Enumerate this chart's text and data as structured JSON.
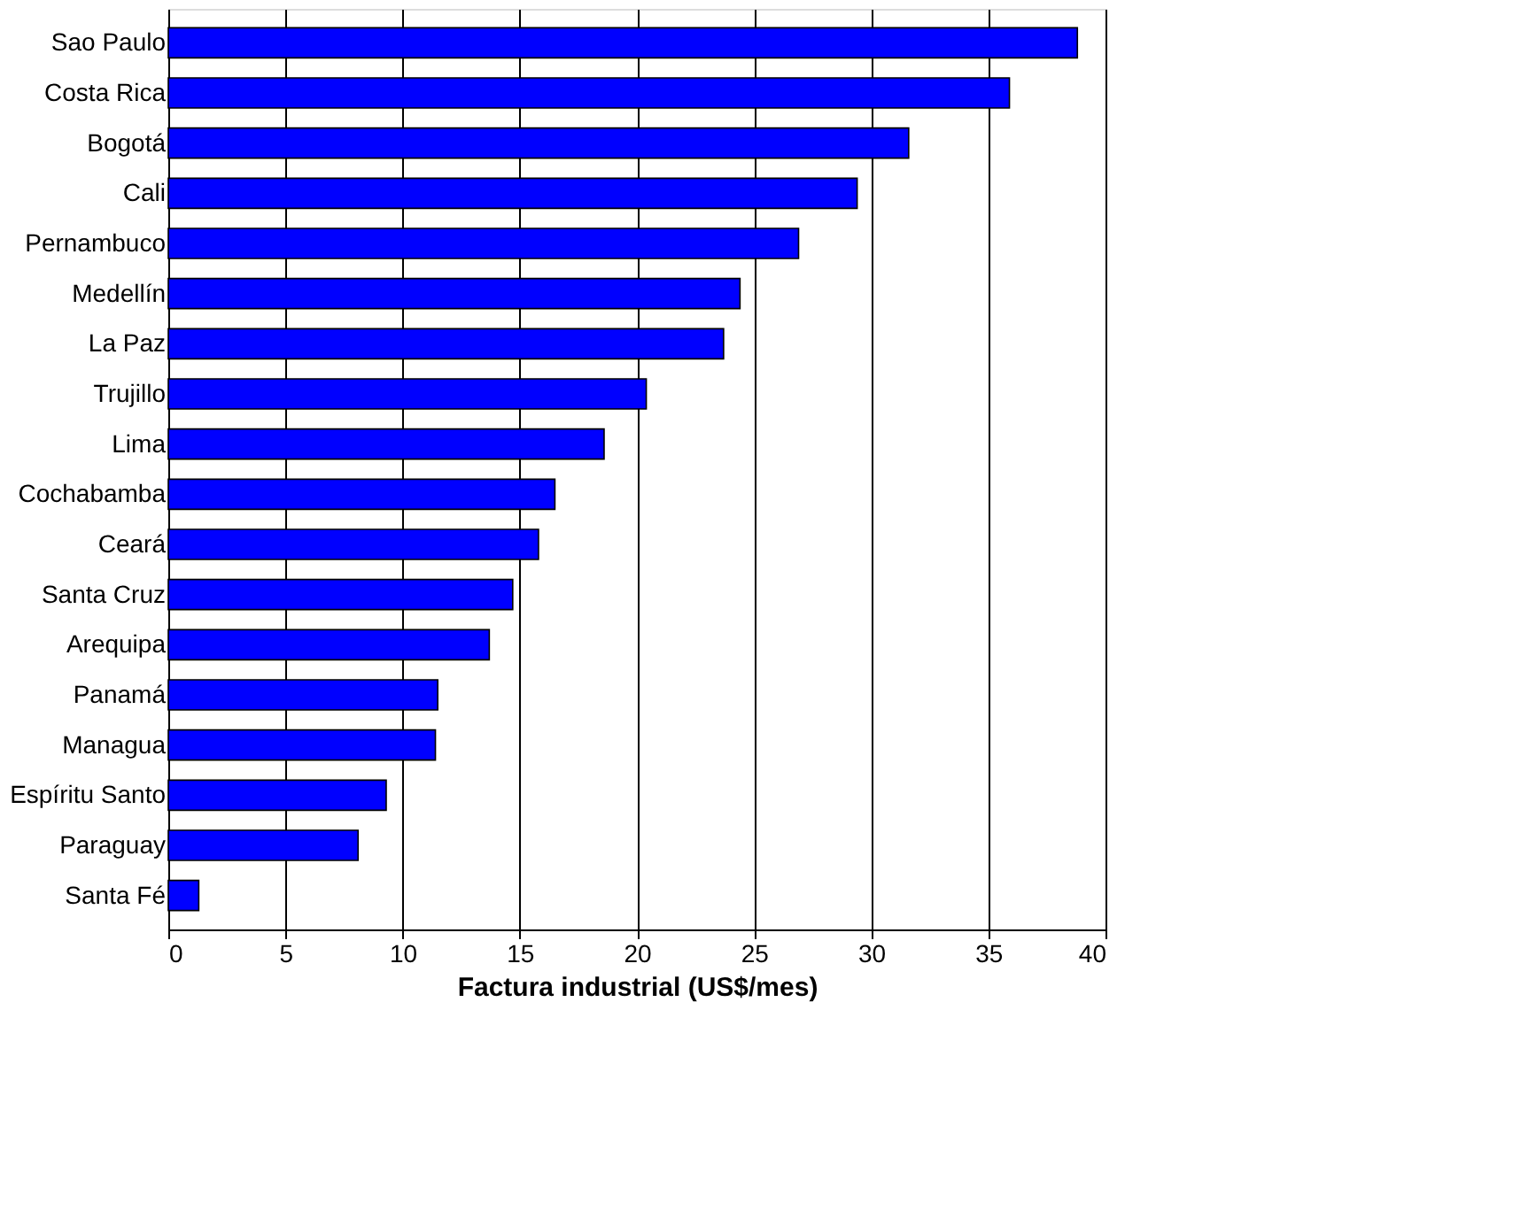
{
  "chart_data": {
    "type": "bar",
    "orientation": "horizontal",
    "xlabel": "Factura industrial (US$/mes)",
    "categories": [
      "Sao Paulo",
      "Costa Rica",
      "Bogotá",
      "Cali",
      "Pernambuco",
      "Medellín",
      "La Paz",
      "Trujillo",
      "Lima",
      "Cochabamba",
      "Ceará",
      "Santa Cruz",
      "Arequipa",
      "Panamá",
      "Managua",
      "Espíritu Santo",
      "Paraguay",
      "Santa Fé"
    ],
    "values": [
      38.8,
      35.9,
      31.6,
      29.4,
      26.9,
      24.4,
      23.7,
      20.4,
      18.6,
      16.5,
      15.8,
      14.7,
      13.7,
      11.5,
      11.4,
      9.3,
      8.1,
      1.3
    ],
    "color": "#0000ff",
    "xlim": [
      0,
      40
    ],
    "xticks": [
      0,
      5,
      10,
      15,
      20,
      25,
      30,
      35,
      40
    ],
    "grid": "x"
  }
}
